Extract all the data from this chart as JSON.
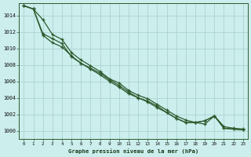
{
  "title": "Graphe pression niveau de la mer (hPa)",
  "background_color": "#cceeed",
  "grid_color": "#aad4d2",
  "line_color": "#2d5a2d",
  "xlim_min": -0.5,
  "xlim_max": 23.5,
  "ylim_min": 999.0,
  "ylim_max": 1015.5,
  "yticks": [
    1000,
    1002,
    1004,
    1006,
    1008,
    1010,
    1012,
    1014
  ],
  "xticks": [
    0,
    1,
    2,
    3,
    4,
    5,
    6,
    7,
    8,
    9,
    10,
    11,
    12,
    13,
    14,
    15,
    16,
    17,
    18,
    19,
    20,
    21,
    22,
    23
  ],
  "series": [
    [
      1015.2,
      1014.8,
      1013.5,
      1011.7,
      1011.1,
      1009.5,
      1008.6,
      1007.9,
      1007.2,
      1006.3,
      1005.8,
      1004.9,
      1004.3,
      1003.9,
      1003.2,
      1002.5,
      1001.8,
      1001.3,
      1001.0,
      1000.8,
      1001.8,
      1000.5,
      1000.3,
      1000.2
    ],
    [
      1015.2,
      1014.8,
      1011.6,
      1010.7,
      1010.2,
      1009.1,
      1008.2,
      1007.5,
      1006.8,
      1006.0,
      1005.3,
      1004.5,
      1004.0,
      1003.5,
      1002.8,
      1002.2,
      1001.5,
      1001.0,
      1001.0,
      1001.2,
      1001.8,
      1000.3,
      1000.2,
      1000.1
    ],
    [
      1015.2,
      1014.8,
      1011.8,
      1011.2,
      1010.6,
      1009.0,
      1008.2,
      1007.6,
      1007.0,
      1006.2,
      1005.5,
      1004.7,
      1004.0,
      1003.6,
      1003.0,
      1002.2,
      1001.5,
      1001.0,
      1001.0,
      1001.2,
      1001.8,
      1000.3,
      1000.2,
      1000.1
    ]
  ]
}
